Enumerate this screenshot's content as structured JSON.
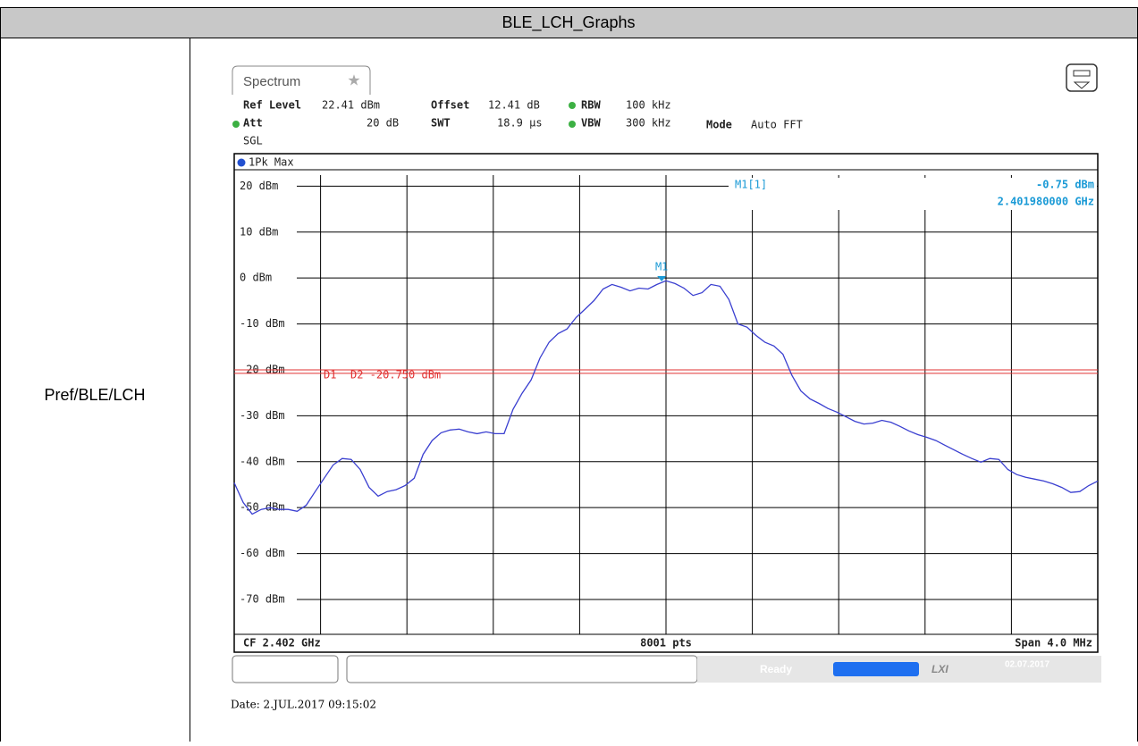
{
  "table": {
    "header": "BLE_LCH_Graphs",
    "row_label": "Pref/BLE/LCH"
  },
  "instrument": {
    "tab": "Spectrum",
    "settings": [
      {
        "key": "Ref Level",
        "value": "22.41 dBm"
      },
      {
        "key": "Offset",
        "value": "12.41 dB"
      },
      {
        "key": "RBW",
        "value": "100 kHz"
      },
      {
        "key": "Att",
        "value": "20 dB"
      },
      {
        "key": "SWT",
        "value": "18.9 µs"
      },
      {
        "key": "VBW",
        "value": "300 kHz"
      },
      {
        "key": "Mode",
        "value": "Auto FFT"
      }
    ],
    "sweep": "SGL",
    "trace_label": "1Pk Max",
    "footer": {
      "left": "CF 2.402 GHz",
      "center": "8001 pts",
      "right": "Span 4.0 MHz"
    },
    "status": "Ready",
    "status_date": "02.07.2017",
    "logo": "LXI"
  },
  "chart_data": {
    "type": "line",
    "xlim": [
      2.4,
      2.404
    ],
    "ylim": [
      -77.59,
      22.41
    ],
    "yticks": [
      {
        "value": 20,
        "label": "20 dBm"
      },
      {
        "value": 10,
        "label": "10 dBm"
      },
      {
        "value": 0,
        "label": "0 dBm"
      },
      {
        "value": -10,
        "label": "-10 dBm"
      },
      {
        "value": -20,
        "label": "-20 dBm"
      },
      {
        "value": -30,
        "label": "-30 dBm"
      },
      {
        "value": -40,
        "label": "-40 dBm"
      },
      {
        "value": -50,
        "label": "-50 dBm"
      },
      {
        "value": -60,
        "label": "-60 dBm"
      },
      {
        "value": -70,
        "label": "-70 dBm"
      }
    ],
    "grid": true,
    "series": [
      {
        "color": "#3a3fd0",
        "values": [
          -44.6,
          -48.9,
          -51.4,
          -50.4,
          -50.0,
          -50.4,
          -50.4,
          -50.8,
          -49.5,
          -46.5,
          -43.6,
          -40.7,
          -39.3,
          -39.5,
          -41.7,
          -45.6,
          -47.5,
          -46.5,
          -46.1,
          -45.2,
          -43.6,
          -38.4,
          -35.4,
          -33.7,
          -33.1,
          -32.9,
          -33.5,
          -33.9,
          -33.5,
          -33.9,
          -33.9,
          -28.6,
          -25.1,
          -22.2,
          -17.4,
          -14.0,
          -12.1,
          -11.1,
          -8.6,
          -6.8,
          -4.9,
          -2.4,
          -1.4,
          -2.0,
          -2.8,
          -2.2,
          -2.4,
          -1.4,
          -0.6,
          -1.2,
          -2.2,
          -3.8,
          -3.2,
          -1.4,
          -1.8,
          -4.7,
          -10.0,
          -10.7,
          -12.5,
          -14.0,
          -14.8,
          -16.6,
          -21.2,
          -24.6,
          -26.3,
          -27.3,
          -28.4,
          -29.2,
          -30.2,
          -31.2,
          -31.8,
          -31.6,
          -31.0,
          -31.4,
          -32.3,
          -33.3,
          -34.1,
          -34.7,
          -35.4,
          -36.4,
          -37.4,
          -38.4,
          -39.3,
          -40.1,
          -39.3,
          -39.5,
          -41.7,
          -42.8,
          -43.4,
          -43.8,
          -44.2,
          -44.8,
          -45.6,
          -46.7,
          -46.5,
          -45.2,
          -44.2
        ]
      }
    ],
    "marker": {
      "label": "M1",
      "name": "M1[1]",
      "x": 2.40198,
      "value": -0.75,
      "value_label": "-0.75 dBm",
      "x_label": "2.401980000 GHz",
      "color": "#1a9ad6"
    },
    "display_lines": [
      {
        "label": "D1",
        "value": -20.0,
        "color": "#e03030"
      },
      {
        "label": "D2 -20.750 dBm",
        "value": -20.75,
        "color": "#e03030"
      }
    ]
  },
  "date": "Date: 2.JUL.2017 09:15:02"
}
